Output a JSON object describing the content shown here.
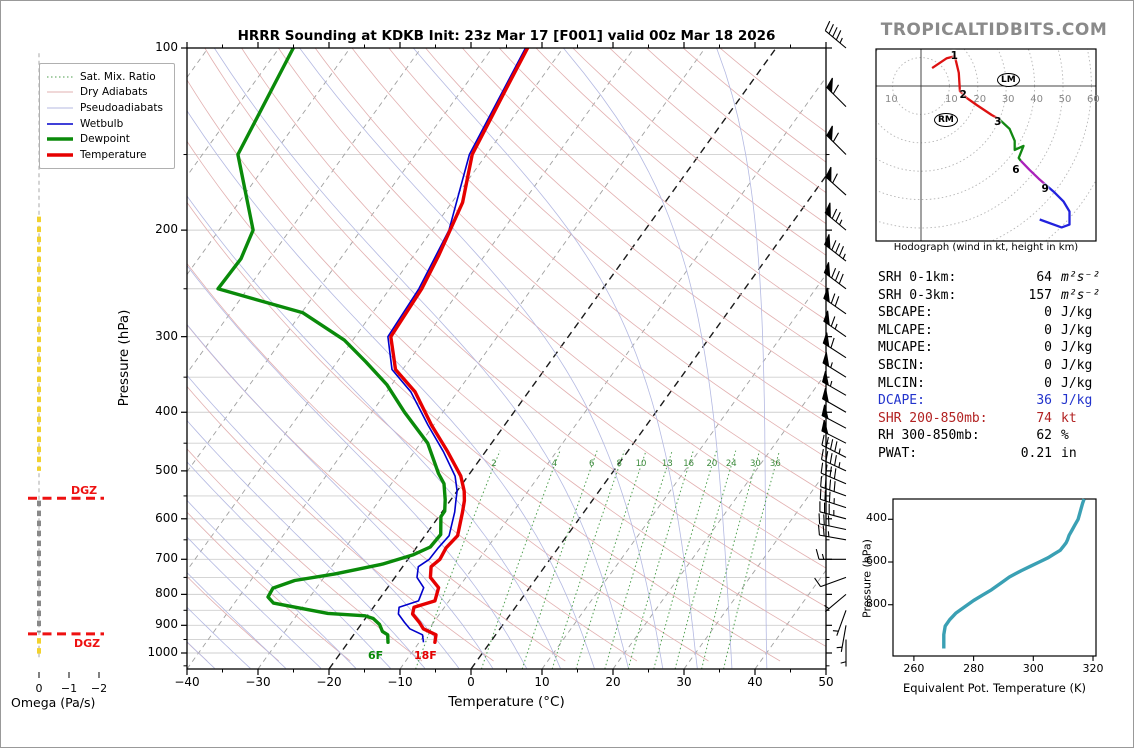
{
  "title": "HRRR Sounding at KDKB Init: 23z Mar 17 [F001] valid 00z Mar 18 2026",
  "watermark": "TROPICALTIDBITS.COM",
  "colors": {
    "temperature": "#e60000",
    "dewpoint": "#0a8a0a",
    "wetbulb": "#0000cc",
    "dry_adiabat": "#e2b0b0",
    "pseudoadiabat": "#b4b9e2",
    "mix_ratio": "#4d9e4d",
    "isotherm_gray": "#a0a0a0",
    "isotherm_black": "#1a1a1a",
    "gridline": "#cfcfcf",
    "thetae_curve": "#3aa0b4",
    "omega_yellow": "#f2d22e",
    "omega_gray": "#888888",
    "dgz_red": "#ee1111",
    "hodo_red": "#dd1111",
    "hodo_green": "#118811",
    "hodo_purple": "#aa22bb",
    "hodo_blue": "#2222dd"
  },
  "skewt": {
    "xlabel": "Temperature (°C)",
    "ylabel": "Pressure (hPa)",
    "x_ticks": [
      -40,
      -30,
      -20,
      -10,
      0,
      10,
      20,
      30,
      40,
      50
    ],
    "x_tick_labels": [
      "−40",
      "−30",
      "−20",
      "−10",
      "0",
      "10",
      "20",
      "30",
      "40",
      "50"
    ],
    "p_ticks": [
      100,
      200,
      300,
      400,
      500,
      600,
      700,
      800,
      900,
      1000
    ],
    "p_range": [
      100,
      1063
    ],
    "t_range": [
      -40,
      50
    ],
    "black_isotherms": [
      0,
      -20
    ],
    "mix_ratio_values": [
      2,
      4,
      6,
      8,
      10,
      13,
      16,
      20,
      24,
      30,
      36
    ],
    "surface_labels": {
      "dewpoint": "6F",
      "temperature": "18F"
    },
    "legend": [
      {
        "label": "Sat. Mix. Ratio",
        "color": "#4d9e4d",
        "dash": "1.5,2.5",
        "width": 1
      },
      {
        "label": "Dry Adiabats",
        "color": "#e2b0b0",
        "dash": "",
        "width": 1
      },
      {
        "label": "Pseudoadiabats",
        "color": "#b4b9e2",
        "dash": "",
        "width": 1
      },
      {
        "label": "Wetbulb",
        "color": "#0000cc",
        "dash": "",
        "width": 1.6
      },
      {
        "label": "Dewpoint",
        "color": "#0a8a0a",
        "dash": "",
        "width": 3.5
      },
      {
        "label": "Temperature",
        "color": "#e60000",
        "dash": "",
        "width": 3.5
      }
    ]
  },
  "chart_data": [
    {
      "type": "line",
      "title": "Skew-T sounding profiles (pressure hPa vs temperature degC)",
      "series": [
        {
          "name": "Temperature",
          "points": [
            [
              100,
              -55
            ],
            [
              115,
              -54
            ],
            [
              150,
              -52
            ],
            [
              180,
              -48.5
            ],
            [
              220,
              -46.5
            ],
            [
              250,
              -45.5
            ],
            [
              300,
              -45
            ],
            [
              340,
              -41
            ],
            [
              370,
              -36
            ],
            [
              420,
              -30.3
            ],
            [
              465,
              -25.3
            ],
            [
              510,
              -21
            ],
            [
              540,
              -19
            ],
            [
              560,
              -18
            ],
            [
              585,
              -17.1
            ],
            [
              640,
              -15.4
            ],
            [
              670,
              -15.8
            ],
            [
              700,
              -15.5
            ],
            [
              720,
              -16
            ],
            [
              750,
              -15
            ],
            [
              780,
              -12.8
            ],
            [
              820,
              -12
            ],
            [
              840,
              -14.3
            ],
            [
              862,
              -13.8
            ],
            [
              890,
              -12
            ],
            [
              912,
              -10.8
            ],
            [
              933,
              -8.4
            ],
            [
              960,
              -7.8
            ]
          ]
        },
        {
          "name": "Dewpoint",
          "points": [
            [
              100,
              -88
            ],
            [
              150,
              -85
            ],
            [
              200,
              -75.2
            ],
            [
              223,
              -74
            ],
            [
              250,
              -74.2
            ],
            [
              274,
              -59.8
            ],
            [
              304,
              -51.2
            ],
            [
              330,
              -46
            ],
            [
              360,
              -40.7
            ],
            [
              400,
              -35.4
            ],
            [
              450,
              -29
            ],
            [
              505,
              -24.4
            ],
            [
              525,
              -22.6
            ],
            [
              558,
              -20.8
            ],
            [
              583,
              -19.7
            ],
            [
              595,
              -19.7
            ],
            [
              637,
              -17.9
            ],
            [
              668,
              -18.1
            ],
            [
              688,
              -19.7
            ],
            [
              713,
              -23.1
            ],
            [
              740,
              -28.8
            ],
            [
              759,
              -33.8
            ],
            [
              781,
              -36.1
            ],
            [
              808,
              -35.9
            ],
            [
              827,
              -34.5
            ],
            [
              860,
              -25.8
            ],
            [
              868,
              -20.3
            ],
            [
              877,
              -18.9
            ],
            [
              897,
              -17.4
            ],
            [
              921,
              -16.3
            ],
            [
              933,
              -15.2
            ],
            [
              960,
              -14.4
            ]
          ]
        },
        {
          "name": "Wetbulb",
          "points": [
            [
              100,
              -55.3
            ],
            [
              150,
              -52.4
            ],
            [
              200,
              -47.6
            ],
            [
              250,
              -45.9
            ],
            [
              300,
              -45.4
            ],
            [
              340,
              -41.5
            ],
            [
              370,
              -36.6
            ],
            [
              420,
              -30.8
            ],
            [
              465,
              -25.9
            ],
            [
              510,
              -21.8
            ],
            [
              540,
              -20
            ],
            [
              560,
              -19.2
            ],
            [
              585,
              -18.2
            ],
            [
              640,
              -16.6
            ],
            [
              670,
              -16.9
            ],
            [
              700,
              -17
            ],
            [
              720,
              -17.8
            ],
            [
              750,
              -16.9
            ],
            [
              780,
              -14.9
            ],
            [
              820,
              -14.3
            ],
            [
              840,
              -16.4
            ],
            [
              862,
              -15.8
            ],
            [
              890,
              -14.1
            ],
            [
              912,
              -12.7
            ],
            [
              933,
              -10.3
            ],
            [
              960,
              -9.4
            ]
          ]
        }
      ]
    },
    {
      "type": "line",
      "title": "Hodograph (u,v in kt)",
      "segments": [
        {
          "name": "0-3km",
          "color": "#dd1111",
          "points": [
            [
              3.9,
              6.3
            ],
            [
              9.1,
              9.8
            ],
            [
              11.9,
              10.5
            ],
            [
              13.3,
              4.6
            ],
            [
              13.7,
              -1.8
            ],
            [
              16.1,
              -4.2
            ],
            [
              19.6,
              -6.7
            ],
            [
              24.9,
              -10.2
            ],
            [
              27.4,
              -11.6
            ]
          ]
        },
        {
          "name": "3-6km",
          "color": "#118811",
          "points": [
            [
              27.4,
              -11.6
            ],
            [
              31.2,
              -15.1
            ],
            [
              33,
              -19.3
            ],
            [
              33,
              -22.5
            ],
            [
              36.1,
              -21.1
            ],
            [
              34.4,
              -25.3
            ],
            [
              35.1,
              -26.3
            ]
          ]
        },
        {
          "name": "6-9km",
          "color": "#aa22bb",
          "points": [
            [
              35.1,
              -26.3
            ],
            [
              38.2,
              -29.5
            ],
            [
              41.4,
              -32.6
            ],
            [
              43.5,
              -34.4
            ]
          ]
        },
        {
          "name": "9km+",
          "color": "#2222dd",
          "points": [
            [
              43.5,
              -34.4
            ],
            [
              46.7,
              -37.2
            ],
            [
              50.2,
              -40.7
            ],
            [
              52.3,
              -44.2
            ],
            [
              52.3,
              -48.8
            ],
            [
              49.5,
              -49.8
            ],
            [
              41.8,
              -47
            ]
          ]
        }
      ],
      "height_labels": [
        {
          "t": "1",
          "u": 11.5,
          "v": 10.2
        },
        {
          "t": "2",
          "u": 14.6,
          "v": -3.6
        },
        {
          "t": "3",
          "u": 26.8,
          "v": -13
        },
        {
          "t": "6",
          "u": 33.2,
          "v": -30
        },
        {
          "t": "9",
          "u": 43.5,
          "v": -36.5
        }
      ],
      "storm_motions": [
        {
          "t": "LM",
          "u": 30.3,
          "v": 2.1
        },
        {
          "t": "RM",
          "u": 8.1,
          "v": -12
        }
      ],
      "ring_step_kt": 10,
      "ring_labels_right": [
        "10",
        "20",
        "30",
        "40",
        "50",
        "60"
      ],
      "ring_label_left": "10"
    },
    {
      "type": "line",
      "title": "Equivalent potential temperature profile",
      "points_K_hPa": [
        [
          270,
          1005
        ],
        [
          270,
          940
        ],
        [
          270.5,
          900
        ],
        [
          272,
          870
        ],
        [
          274,
          840
        ],
        [
          277,
          810
        ],
        [
          280,
          780
        ],
        [
          283,
          755
        ],
        [
          286,
          730
        ],
        [
          288,
          710
        ],
        [
          290,
          690
        ],
        [
          292,
          670
        ],
        [
          294,
          655
        ],
        [
          296,
          640
        ],
        [
          299,
          620
        ],
        [
          302,
          600
        ],
        [
          305,
          580
        ],
        [
          307,
          562
        ],
        [
          309,
          545
        ],
        [
          310,
          528
        ],
        [
          311,
          510
        ],
        [
          311.5,
          495
        ],
        [
          312,
          475
        ],
        [
          313,
          450
        ],
        [
          314,
          425
        ],
        [
          315,
          400
        ],
        [
          315.5,
          375
        ],
        [
          316,
          350
        ],
        [
          316.5,
          325
        ],
        [
          317,
          305
        ]
      ]
    }
  ],
  "wind_barbs": [
    [
      100,
      45,
      310
    ],
    [
      125,
      60,
      315
    ],
    [
      150,
      60,
      315
    ],
    [
      175,
      60,
      312
    ],
    [
      200,
      75,
      310
    ],
    [
      225,
      85,
      308
    ],
    [
      250,
      80,
      307
    ],
    [
      275,
      70,
      305
    ],
    [
      300,
      65,
      305
    ],
    [
      325,
      60,
      303
    ],
    [
      350,
      55,
      302
    ],
    [
      375,
      55,
      300
    ],
    [
      400,
      50,
      300
    ],
    [
      425,
      50,
      298
    ],
    [
      450,
      50,
      297
    ],
    [
      475,
      45,
      297
    ],
    [
      500,
      45,
      295
    ],
    [
      525,
      40,
      293
    ],
    [
      550,
      40,
      290
    ],
    [
      575,
      35,
      288
    ],
    [
      600,
      35,
      285
    ],
    [
      625,
      30,
      282
    ],
    [
      650,
      25,
      280
    ],
    [
      700,
      15,
      270
    ],
    [
      750,
      10,
      250
    ],
    [
      800,
      8,
      230
    ],
    [
      850,
      5,
      200
    ],
    [
      900,
      5,
      190
    ],
    [
      950,
      5,
      180
    ]
  ],
  "omega": {
    "label": "Omega (Pa/s)",
    "tick_labels": [
      "0",
      "−1",
      "−2"
    ],
    "tick_values": [
      0,
      -1,
      -2
    ],
    "dgz_label": "DGZ",
    "dgz_pressures": [
      555,
      930
    ],
    "profile_segments": [
      {
        "color": "#f2d22e",
        "from_p": 190,
        "to_p": 500,
        "width": 4
      },
      {
        "color": "#888888",
        "from_p": 560,
        "to_p": 925,
        "width": 4
      },
      {
        "color": "#f2d22e",
        "from_p": 945,
        "to_p": 1015,
        "width": 4
      }
    ]
  },
  "hodograph_caption": "Hodograph (wind in kt, height in km)",
  "stats": {
    "rows": [
      {
        "label": "SRH 0-1km:",
        "value": "64",
        "unit": "m²s⁻²",
        "color": "#000000",
        "unit_italic": true
      },
      {
        "label": "SRH 0-3km:",
        "value": "157",
        "unit": "m²s⁻²",
        "color": "#000000",
        "unit_italic": true
      },
      {
        "label": "SBCAPE:",
        "value": "0",
        "unit": "J/kg",
        "color": "#000000",
        "unit_italic": false
      },
      {
        "label": "MLCAPE:",
        "value": "0",
        "unit": "J/kg",
        "color": "#000000",
        "unit_italic": false
      },
      {
        "label": "MUCAPE:",
        "value": "0",
        "unit": "J/kg",
        "color": "#000000",
        "unit_italic": false
      },
      {
        "label": "SBCIN:",
        "value": "0",
        "unit": "J/kg",
        "color": "#000000",
        "unit_italic": false
      },
      {
        "label": "MLCIN:",
        "value": "0",
        "unit": "J/kg",
        "color": "#000000",
        "unit_italic": false
      },
      {
        "label": "DCAPE:",
        "value": "36",
        "unit": "J/kg",
        "color": "#2233cc",
        "unit_italic": false
      },
      {
        "label": "SHR 200-850mb:",
        "value": "74",
        "unit": "kt",
        "color": "#b22222",
        "unit_italic": false
      },
      {
        "label": "RH 300-850mb:",
        "value": "62",
        "unit": "%",
        "color": "#000000",
        "unit_italic": false
      },
      {
        "label": "PWAT:",
        "value": "0.21",
        "unit": "in",
        "color": "#000000",
        "unit_italic": false
      }
    ]
  },
  "thetae_panel": {
    "xlabel": "Equivalent Pot. Temperature (K)",
    "ylabel": "Pressure (hPa)",
    "x_ticks": [
      "260",
      "280",
      "300",
      "320"
    ],
    "x_tick_values": [
      260,
      280,
      300,
      320
    ],
    "y_ticks": [
      "400",
      "600",
      "800"
    ],
    "y_tick_values": [
      400,
      600,
      800
    ],
    "x_range": [
      253,
      321
    ],
    "p_range": [
      305,
      1040
    ]
  }
}
